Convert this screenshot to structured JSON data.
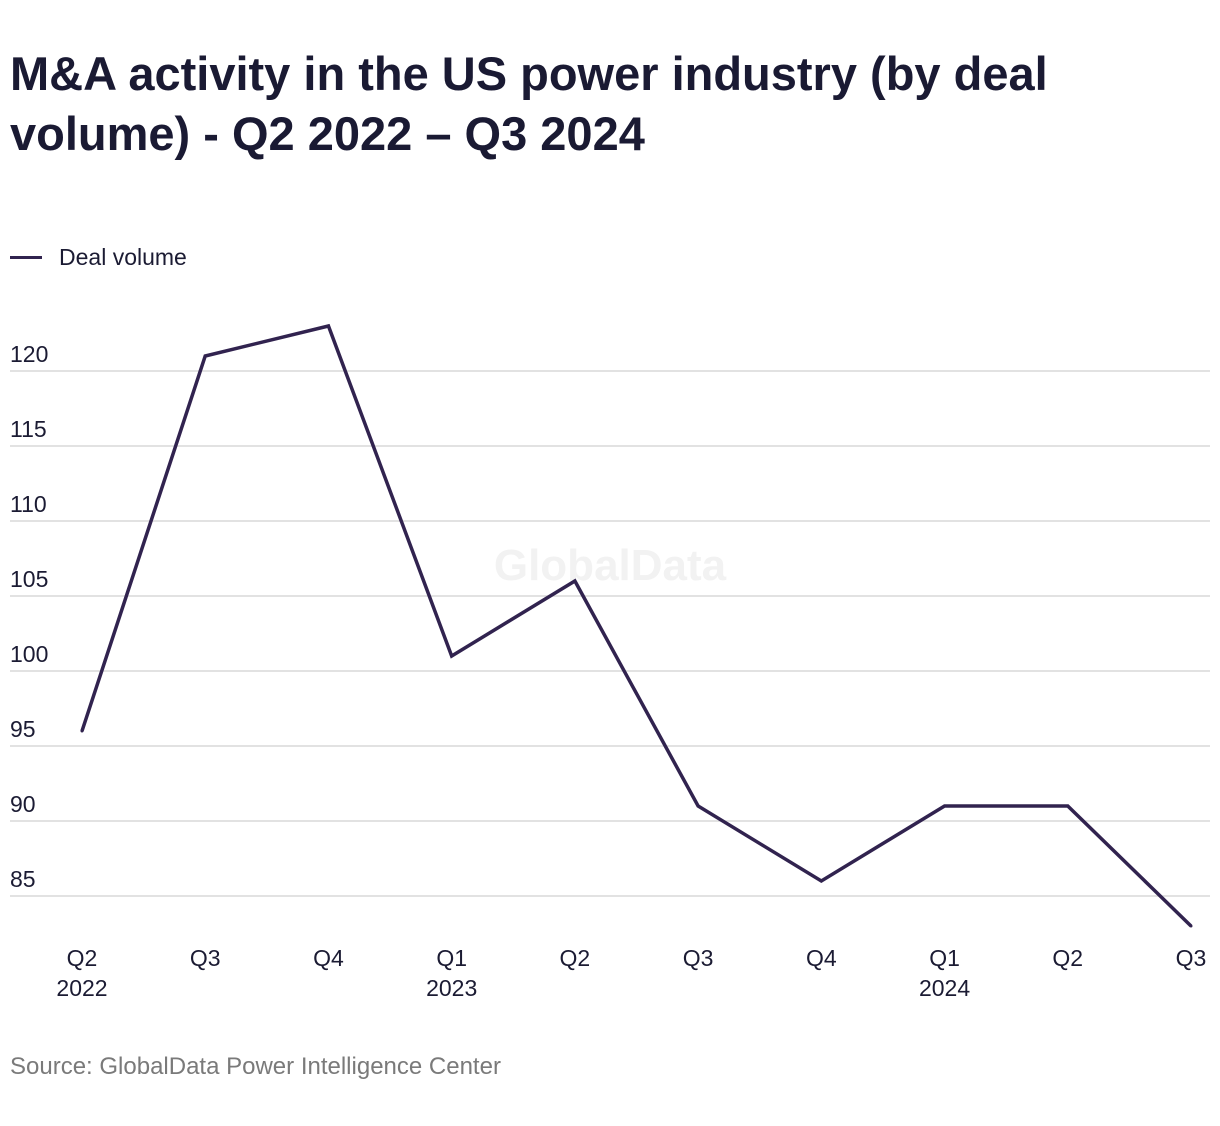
{
  "title": "M&A activity in the US power industry (by deal volume) - Q2 2022 – Q3 2024",
  "legend": {
    "label": "Deal volume"
  },
  "watermark": "GlobalData",
  "source": "Source: GlobalData Power Intelligence Center",
  "colors": {
    "line": "#31234f",
    "grid": "#d9d9d9",
    "text": "#1b1b33",
    "source": "#7a7a7a",
    "watermark": "#f2f2f2"
  },
  "chart_data": {
    "type": "line",
    "title": "M&A activity in the US power industry (by deal volume) - Q2 2022 – Q3 2024",
    "xlabel": "",
    "ylabel": "",
    "categories": [
      "Q2 2022",
      "Q3 2022",
      "Q4 2022",
      "Q1 2023",
      "Q2 2023",
      "Q3 2023",
      "Q4 2023",
      "Q1 2024",
      "Q2 2024",
      "Q3 2024"
    ],
    "x_tick_labels": [
      [
        "Q2",
        "2022"
      ],
      [
        "Q3",
        ""
      ],
      [
        "Q4",
        ""
      ],
      [
        "Q1",
        "2023"
      ],
      [
        "Q2",
        ""
      ],
      [
        "Q3",
        ""
      ],
      [
        "Q4",
        ""
      ],
      [
        "Q1",
        "2024"
      ],
      [
        "Q2",
        ""
      ],
      [
        "Q3",
        ""
      ]
    ],
    "series": [
      {
        "name": "Deal volume",
        "values": [
          96,
          121,
          123,
          101,
          106,
          91,
          86,
          91,
          91,
          83
        ]
      }
    ],
    "y_ticks": [
      85,
      90,
      95,
      100,
      105,
      110,
      115,
      120
    ],
    "ylim": [
      82,
      126
    ],
    "grid": true,
    "legend_position": "top-left"
  }
}
